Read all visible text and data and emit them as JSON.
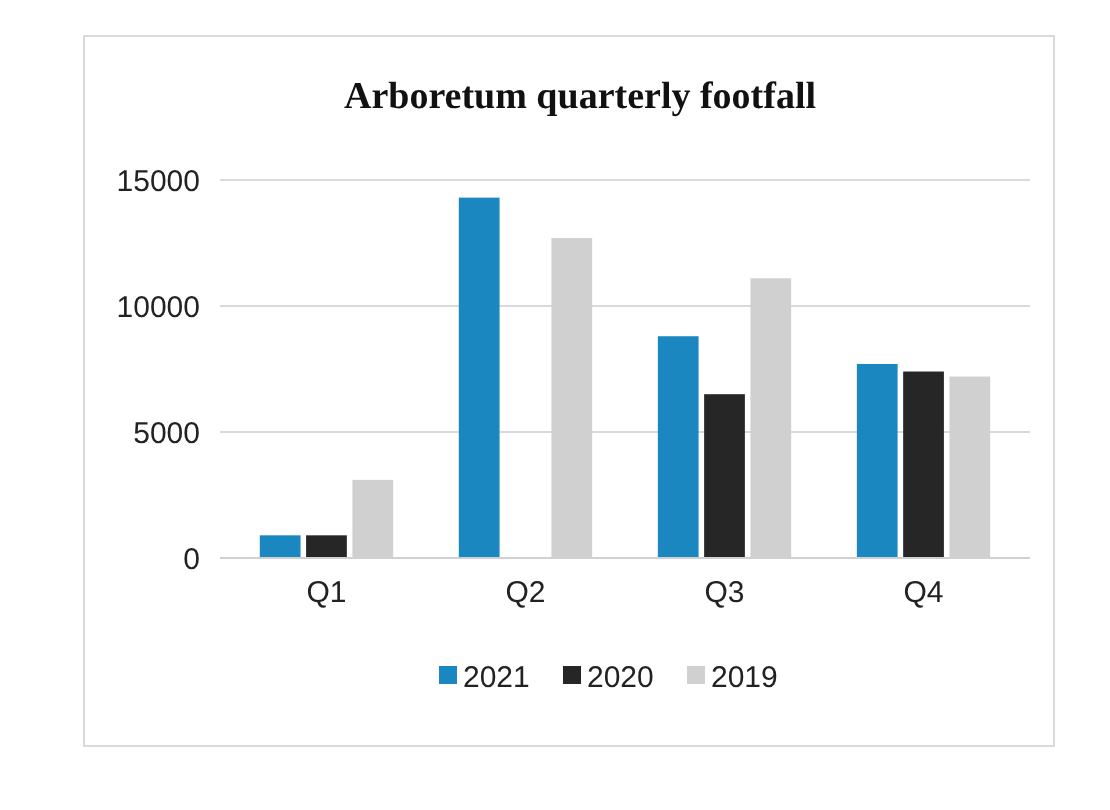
{
  "chart_data": {
    "type": "bar",
    "title": "Arboretum quarterly footfall",
    "categories": [
      "Q1",
      "Q2",
      "Q3",
      "Q4"
    ],
    "series": [
      {
        "name": "2021",
        "color": "#1a87c0",
        "values": [
          900,
          14300,
          8800,
          7700
        ]
      },
      {
        "name": "2020",
        "color": "#262626",
        "values": [
          900,
          null,
          6500,
          7400
        ]
      },
      {
        "name": "2019",
        "color": "#d0d0d0",
        "values": [
          3100,
          12700,
          11100,
          7200
        ]
      }
    ],
    "ylim": [
      0,
      15000
    ],
    "yticks": [
      0,
      5000,
      10000,
      15000
    ],
    "grid": "y",
    "legend": "bottom"
  }
}
